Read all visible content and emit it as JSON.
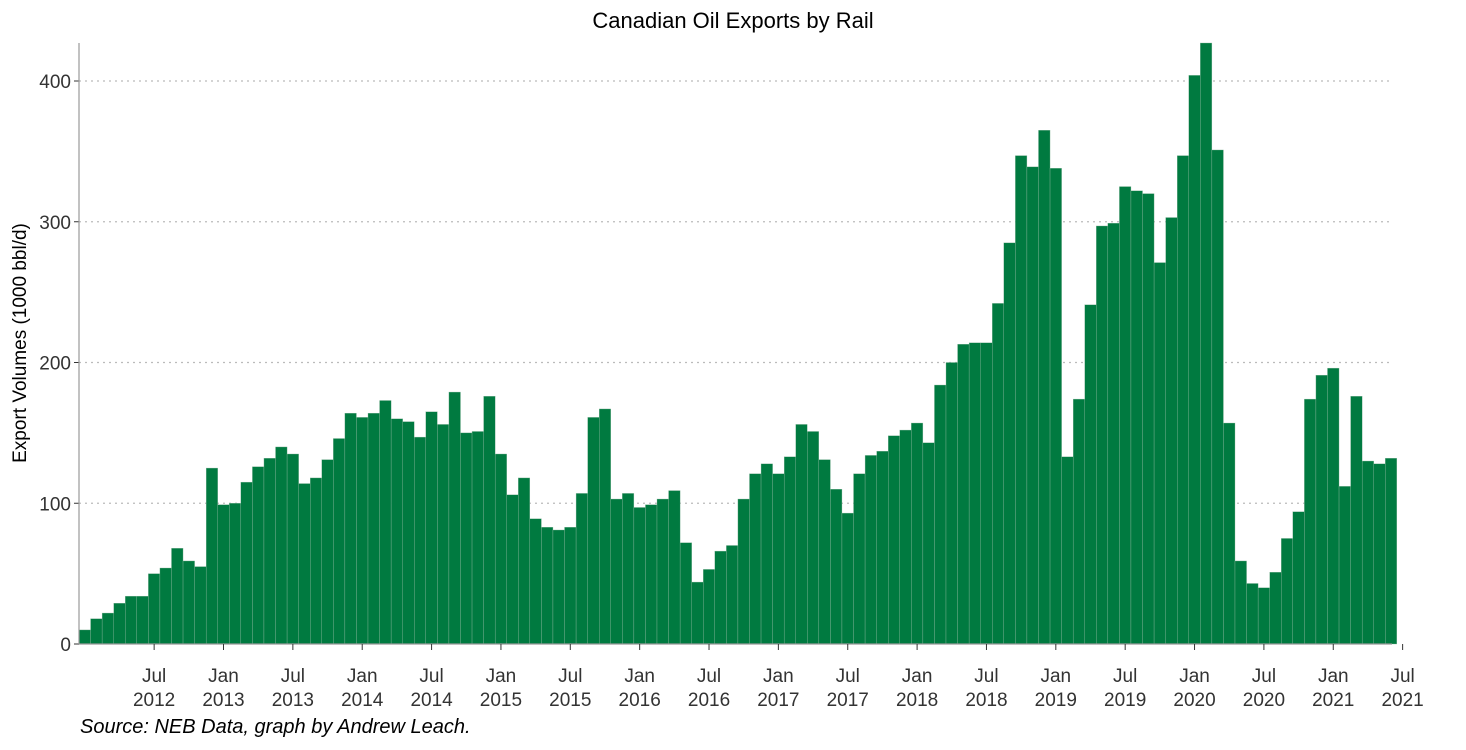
{
  "chart_data": {
    "type": "bar",
    "title": "Canadian Oil Exports by Rail",
    "ylabel": "Export Volumes (1000 bbl/d)",
    "xlabel": "",
    "source": "Source: NEB Data, graph by Andrew Leach.",
    "ylim": [
      0,
      427
    ],
    "yticks": [
      0,
      100,
      200,
      300,
      400
    ],
    "grid": "horizontal-dotted",
    "bar_color": "#007A40",
    "start": "2012-01",
    "x_tick_labels": [
      {
        "month": "Jul",
        "year": "2012"
      },
      {
        "month": "Jan",
        "year": "2013"
      },
      {
        "month": "Jul",
        "year": "2013"
      },
      {
        "month": "Jan",
        "year": "2014"
      },
      {
        "month": "Jul",
        "year": "2014"
      },
      {
        "month": "Jan",
        "year": "2015"
      },
      {
        "month": "Jul",
        "year": "2015"
      },
      {
        "month": "Jan",
        "year": "2016"
      },
      {
        "month": "Jul",
        "year": "2016"
      },
      {
        "month": "Jan",
        "year": "2017"
      },
      {
        "month": "Jul",
        "year": "2017"
      },
      {
        "month": "Jan",
        "year": "2018"
      },
      {
        "month": "Jul",
        "year": "2018"
      },
      {
        "month": "Jan",
        "year": "2019"
      },
      {
        "month": "Jul",
        "year": "2019"
      },
      {
        "month": "Jan",
        "year": "2020"
      },
      {
        "month": "Jul",
        "year": "2020"
      },
      {
        "month": "Jan",
        "year": "2021"
      },
      {
        "month": "Jul",
        "year": "2021"
      }
    ],
    "values": [
      10,
      18,
      22,
      29,
      34,
      34,
      50,
      54,
      68,
      59,
      55,
      125,
      99,
      100,
      115,
      126,
      132,
      140,
      135,
      114,
      118,
      131,
      146,
      164,
      161,
      164,
      173,
      160,
      158,
      147,
      165,
      156,
      179,
      150,
      151,
      176,
      135,
      106,
      118,
      89,
      83,
      81,
      83,
      107,
      161,
      167,
      103,
      107,
      97,
      99,
      103,
      109,
      72,
      44,
      53,
      66,
      70,
      103,
      121,
      128,
      121,
      133,
      156,
      151,
      131,
      110,
      93,
      121,
      134,
      137,
      148,
      152,
      157,
      143,
      184,
      200,
      213,
      214,
      214,
      242,
      285,
      347,
      339,
      365,
      338,
      133,
      174,
      241,
      297,
      299,
      325,
      322,
      320,
      271,
      303,
      347,
      404,
      427,
      351,
      157,
      59,
      43,
      40,
      51,
      75,
      94,
      174,
      191,
      196,
      112,
      176,
      130,
      128,
      132
    ]
  }
}
